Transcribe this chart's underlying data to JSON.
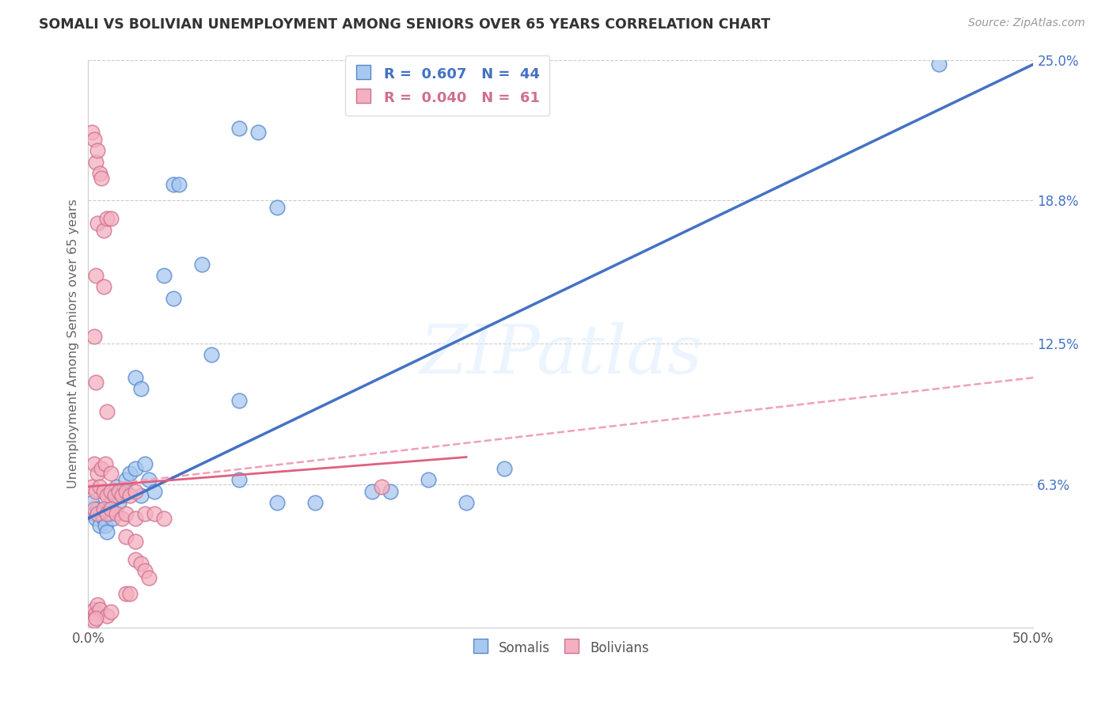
{
  "title": "SOMALI VS BOLIVIAN UNEMPLOYMENT AMONG SENIORS OVER 65 YEARS CORRELATION CHART",
  "source": "Source: ZipAtlas.com",
  "ylabel": "Unemployment Among Seniors over 65 years",
  "xlim": [
    0.0,
    0.5
  ],
  "ylim": [
    0.0,
    0.25
  ],
  "ytick_vals": [
    0.0,
    0.063,
    0.125,
    0.188,
    0.25
  ],
  "ytick_labels": [
    "",
    "6.3%",
    "12.5%",
    "18.8%",
    "25.0%"
  ],
  "xtick_vals": [
    0.0,
    0.1,
    0.2,
    0.3,
    0.4,
    0.5
  ],
  "xtick_labels": [
    "0.0%",
    "",
    "",
    "",
    "",
    "50.0%"
  ],
  "watermark": "ZIPatlas",
  "somali_face": "#a8c8f0",
  "somali_edge": "#5588cc",
  "bolivian_face": "#f4b0c0",
  "bolivian_edge": "#d07090",
  "somali_line_color": "#4472c4",
  "bolivian_solid_color": "#e06080",
  "bolivian_dash_color": "#f0a0b8",
  "R_somali": 0.607,
  "N_somali": 44,
  "R_bolivian": 0.04,
  "N_bolivian": 61,
  "somali_points": [
    [
      0.002,
      0.055
    ],
    [
      0.003,
      0.05
    ],
    [
      0.004,
      0.048
    ],
    [
      0.005,
      0.052
    ],
    [
      0.006,
      0.045
    ],
    [
      0.007,
      0.05
    ],
    [
      0.008,
      0.048
    ],
    [
      0.009,
      0.045
    ],
    [
      0.01,
      0.042
    ],
    [
      0.011,
      0.05
    ],
    [
      0.012,
      0.055
    ],
    [
      0.013,
      0.048
    ],
    [
      0.014,
      0.058
    ],
    [
      0.015,
      0.062
    ],
    [
      0.016,
      0.055
    ],
    [
      0.018,
      0.06
    ],
    [
      0.02,
      0.065
    ],
    [
      0.022,
      0.068
    ],
    [
      0.025,
      0.07
    ],
    [
      0.028,
      0.058
    ],
    [
      0.03,
      0.072
    ],
    [
      0.032,
      0.065
    ],
    [
      0.035,
      0.06
    ],
    [
      0.025,
      0.11
    ],
    [
      0.028,
      0.105
    ],
    [
      0.04,
      0.155
    ],
    [
      0.045,
      0.145
    ],
    [
      0.065,
      0.12
    ],
    [
      0.08,
      0.1
    ],
    [
      0.08,
      0.065
    ],
    [
      0.1,
      0.055
    ],
    [
      0.12,
      0.055
    ],
    [
      0.15,
      0.06
    ],
    [
      0.18,
      0.065
    ],
    [
      0.2,
      0.055
    ],
    [
      0.22,
      0.07
    ],
    [
      0.16,
      0.06
    ],
    [
      0.08,
      0.22
    ],
    [
      0.09,
      0.218
    ],
    [
      0.1,
      0.185
    ],
    [
      0.06,
      0.16
    ],
    [
      0.045,
      0.195
    ],
    [
      0.048,
      0.195
    ],
    [
      0.45,
      0.248
    ]
  ],
  "bolivian_points": [
    [
      0.002,
      0.218
    ],
    [
      0.003,
      0.215
    ],
    [
      0.004,
      0.205
    ],
    [
      0.005,
      0.21
    ],
    [
      0.006,
      0.2
    ],
    [
      0.007,
      0.198
    ],
    [
      0.005,
      0.178
    ],
    [
      0.008,
      0.175
    ],
    [
      0.01,
      0.18
    ],
    [
      0.004,
      0.155
    ],
    [
      0.008,
      0.15
    ],
    [
      0.012,
      0.18
    ],
    [
      0.003,
      0.128
    ],
    [
      0.004,
      0.108
    ],
    [
      0.01,
      0.095
    ],
    [
      0.003,
      0.072
    ],
    [
      0.005,
      0.068
    ],
    [
      0.007,
      0.07
    ],
    [
      0.009,
      0.072
    ],
    [
      0.012,
      0.068
    ],
    [
      0.002,
      0.062
    ],
    [
      0.004,
      0.06
    ],
    [
      0.006,
      0.062
    ],
    [
      0.008,
      0.06
    ],
    [
      0.01,
      0.058
    ],
    [
      0.012,
      0.06
    ],
    [
      0.014,
      0.058
    ],
    [
      0.016,
      0.06
    ],
    [
      0.018,
      0.058
    ],
    [
      0.02,
      0.06
    ],
    [
      0.022,
      0.058
    ],
    [
      0.025,
      0.06
    ],
    [
      0.003,
      0.052
    ],
    [
      0.005,
      0.05
    ],
    [
      0.008,
      0.052
    ],
    [
      0.01,
      0.05
    ],
    [
      0.012,
      0.052
    ],
    [
      0.015,
      0.05
    ],
    [
      0.018,
      0.048
    ],
    [
      0.02,
      0.05
    ],
    [
      0.025,
      0.048
    ],
    [
      0.03,
      0.05
    ],
    [
      0.035,
      0.05
    ],
    [
      0.04,
      0.048
    ],
    [
      0.02,
      0.04
    ],
    [
      0.025,
      0.038
    ],
    [
      0.025,
      0.03
    ],
    [
      0.028,
      0.028
    ],
    [
      0.03,
      0.025
    ],
    [
      0.032,
      0.022
    ],
    [
      0.02,
      0.015
    ],
    [
      0.022,
      0.015
    ],
    [
      0.003,
      0.008
    ],
    [
      0.004,
      0.006
    ],
    [
      0.005,
      0.01
    ],
    [
      0.006,
      0.008
    ],
    [
      0.01,
      0.005
    ],
    [
      0.012,
      0.007
    ],
    [
      0.003,
      0.003
    ],
    [
      0.004,
      0.004
    ],
    [
      0.155,
      0.062
    ]
  ]
}
